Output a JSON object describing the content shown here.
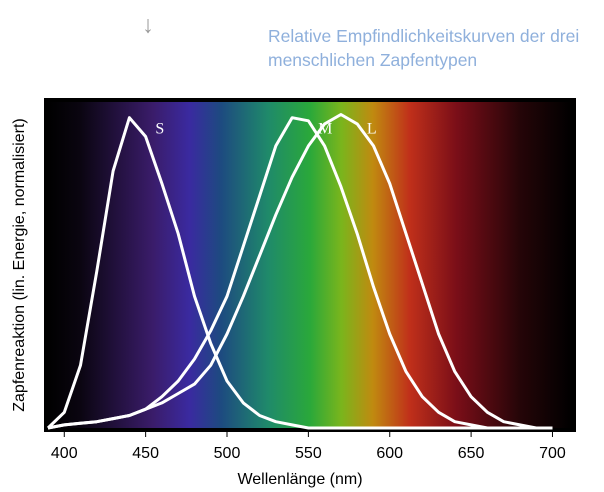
{
  "chart_data": {
    "type": "line",
    "title": "Relative Empfindlichkeitskurven der drei menschlichen Zapfentypen",
    "arrow": "↓",
    "x_label": "Wellenlänge (nm)",
    "y_label": "Zapfenreaktion (lin. Energie, normalisiert)",
    "x": [
      390,
      400,
      410,
      420,
      430,
      440,
      450,
      460,
      470,
      480,
      490,
      500,
      510,
      520,
      530,
      540,
      550,
      560,
      570,
      580,
      590,
      600,
      610,
      620,
      630,
      640,
      650,
      660,
      670,
      680,
      690,
      700
    ],
    "series": [
      {
        "name": "S",
        "color": "#ffffff",
        "values": [
          0,
          0.05,
          0.2,
          0.5,
          0.82,
          0.99,
          0.93,
          0.78,
          0.62,
          0.42,
          0.27,
          0.15,
          0.08,
          0.04,
          0.02,
          0.01,
          0,
          0,
          0,
          0,
          0,
          0,
          0,
          0,
          0,
          0,
          0,
          0,
          0,
          0,
          0,
          0
        ]
      },
      {
        "name": "M",
        "color": "#ffffff",
        "values": [
          0,
          0.01,
          0.015,
          0.02,
          0.03,
          0.04,
          0.06,
          0.1,
          0.15,
          0.22,
          0.31,
          0.42,
          0.58,
          0.74,
          0.9,
          0.99,
          0.98,
          0.9,
          0.77,
          0.62,
          0.45,
          0.3,
          0.18,
          0.1,
          0.05,
          0.02,
          0.01,
          0,
          0,
          0,
          0,
          0
        ]
      },
      {
        "name": "L",
        "color": "#ffffff",
        "values": [
          0,
          0.01,
          0.015,
          0.02,
          0.03,
          0.04,
          0.06,
          0.08,
          0.11,
          0.14,
          0.2,
          0.3,
          0.42,
          0.55,
          0.68,
          0.8,
          0.9,
          0.97,
          1.0,
          0.97,
          0.9,
          0.78,
          0.62,
          0.46,
          0.3,
          0.18,
          0.1,
          0.05,
          0.02,
          0.01,
          0,
          0
        ]
      }
    ],
    "xlim": [
      390,
      712
    ],
    "ylim": [
      0,
      1.04
    ],
    "xticks": [
      400,
      450,
      500,
      550,
      600,
      650,
      700
    ]
  }
}
